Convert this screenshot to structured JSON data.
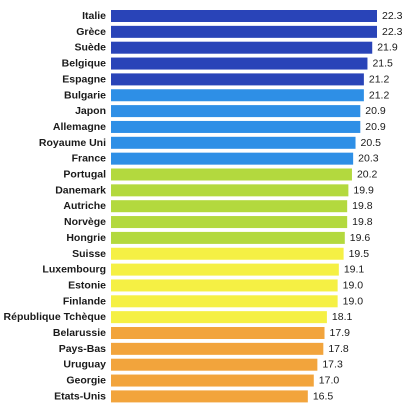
{
  "chart_data": {
    "type": "bar",
    "orientation": "horizontal",
    "title": "",
    "xlabel": "",
    "ylabel": "",
    "grid": false,
    "legend": "none",
    "xlim": [
      0,
      22.3
    ],
    "categories": [
      "Italie",
      "Grèce",
      "Suède",
      "Belgique",
      "Espagne",
      "Bulgarie",
      "Japon",
      "Allemagne",
      "Royaume Uni",
      "France",
      "Portugal",
      "Danemark",
      "Autriche",
      "Norvège",
      "Hongrie",
      "Suisse",
      "Luxembourg",
      "Estonie",
      "Finlande",
      "République Tchèque",
      "Belarussie",
      "Pays-Bas",
      "Uruguay",
      "Georgie",
      "Etats-Unis"
    ],
    "values": [
      22.3,
      22.3,
      21.9,
      21.5,
      21.2,
      21.2,
      20.9,
      20.9,
      20.5,
      20.3,
      20.2,
      19.9,
      19.8,
      19.8,
      19.6,
      19.5,
      19.1,
      19.0,
      19.0,
      18.1,
      17.9,
      17.8,
      17.3,
      17.0,
      16.5
    ],
    "value_labels": [
      "22.3",
      "22.3",
      "21.9",
      "21.5",
      "21.2",
      "21.2",
      "20.9",
      "20.9",
      "20.5",
      "20.3",
      "20.2",
      "19.9",
      "19.8",
      "19.8",
      "19.6",
      "19.5",
      "19.1",
      "19.0",
      "19.0",
      "18.1",
      "17.9",
      "17.8",
      "17.3",
      "17.0",
      "16.5"
    ],
    "bar_colors": [
      "#2944b8",
      "#2944b8",
      "#2944b8",
      "#2944b8",
      "#2944b8",
      "#2e8fe6",
      "#2e8fe6",
      "#2e8fe6",
      "#2e8fe6",
      "#2e8fe6",
      "#b3d93e",
      "#b3d93e",
      "#b3d93e",
      "#b3d93e",
      "#b3d93e",
      "#f5f044",
      "#f5f044",
      "#f5f044",
      "#f5f044",
      "#f5f044",
      "#f2a43c",
      "#f2a43c",
      "#f2a43c",
      "#f2a43c",
      "#f2a43c"
    ]
  }
}
